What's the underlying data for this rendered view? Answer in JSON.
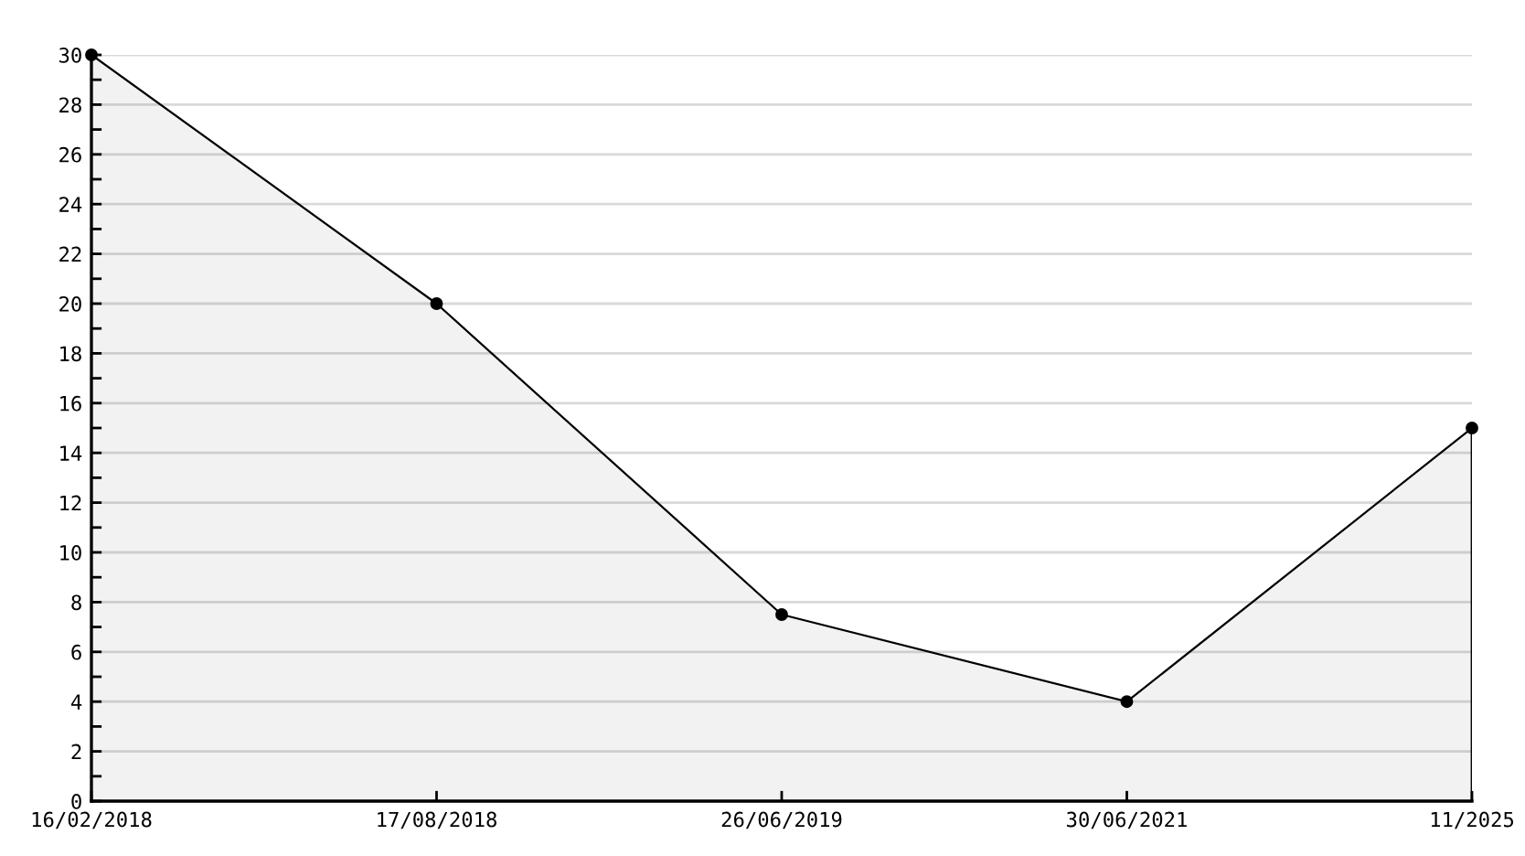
{
  "chart_data": {
    "type": "area",
    "categories": [
      "16/02/2018",
      "17/08/2018",
      "26/06/2019",
      "30/06/2021",
      "11/2025"
    ],
    "series": [
      {
        "color": "#000000",
        "values": [
          30,
          20,
          7.5,
          4,
          15
        ]
      }
    ],
    "ylim": [
      0,
      30
    ],
    "yticks": [
      0,
      {
        "value": 1,
        "label": null
      },
      2,
      {
        "value": 3,
        "label": null
      },
      4,
      {
        "value": 5,
        "label": null
      },
      6,
      {
        "value": 7,
        "label": null
      },
      8,
      {
        "value": 9,
        "label": null
      },
      10,
      {
        "value": 11,
        "label": null
      },
      12,
      {
        "value": 13,
        "label": null
      },
      14,
      {
        "value": 15,
        "label": null
      },
      16,
      {
        "value": 17,
        "label": null
      },
      18,
      {
        "value": 19,
        "label": null
      },
      20,
      {
        "value": 21,
        "label": null
      },
      22,
      {
        "value": 23,
        "label": null
      },
      24,
      {
        "value": 25,
        "label": null
      },
      26,
      {
        "value": 27,
        "label": null
      },
      28,
      {
        "value": 29,
        "label": null
      },
      30
    ],
    "grid": "y",
    "marker": "circle",
    "line_style": "solid"
  }
}
